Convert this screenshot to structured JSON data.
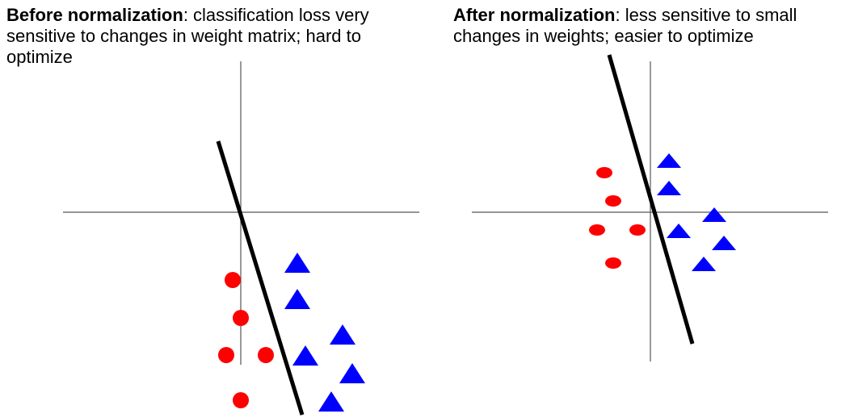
{
  "panels": [
    {
      "bold": "Before normalization",
      "text": ": classification loss very sensitive to changes in weight matrix; hard to optimize"
    },
    {
      "bold": "After normalization",
      "text": ": less sensitive to small changes in weights; easier to optimize"
    }
  ],
  "colors": {
    "axis": "#555555",
    "boundary": "#000000",
    "circle": "#ff0000",
    "triangle": "#0000ff"
  }
}
